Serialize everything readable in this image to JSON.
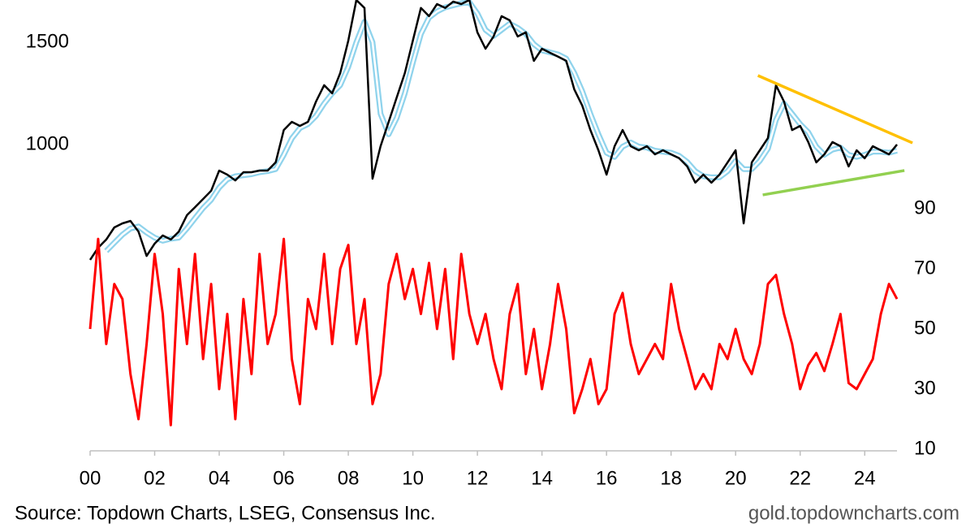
{
  "chart_data": {
    "type": "line",
    "x": [
      2000,
      2000.25,
      2000.5,
      2000.75,
      2001,
      2001.25,
      2001.5,
      2001.75,
      2002,
      2002.25,
      2002.5,
      2002.75,
      2003,
      2003.25,
      2003.5,
      2003.75,
      2004,
      2004.25,
      2004.5,
      2004.75,
      2005,
      2005.25,
      2005.5,
      2005.75,
      2006,
      2006.25,
      2006.5,
      2006.75,
      2007,
      2007.25,
      2007.5,
      2007.75,
      2008,
      2008.25,
      2008.5,
      2008.75,
      2009,
      2009.25,
      2009.5,
      2009.75,
      2010,
      2010.25,
      2010.5,
      2010.75,
      2011,
      2011.25,
      2011.5,
      2011.75,
      2012,
      2012.25,
      2012.5,
      2012.75,
      2013,
      2013.25,
      2013.5,
      2013.75,
      2014,
      2014.25,
      2014.5,
      2014.75,
      2015,
      2015.25,
      2015.5,
      2015.75,
      2016,
      2016.25,
      2016.5,
      2016.75,
      2017,
      2017.25,
      2017.5,
      2017.75,
      2018,
      2018.25,
      2018.5,
      2018.75,
      2019,
      2019.25,
      2019.5,
      2019.75,
      2020,
      2020.25,
      2020.5,
      2020.75,
      2021,
      2021.25,
      2021.5,
      2021.75,
      2022,
      2022.25,
      2022.5,
      2022.75,
      2023,
      2023.25,
      2023.5,
      2023.75,
      2024,
      2024.25,
      2024.5,
      2024.75,
      2025
    ],
    "series": [
      {
        "color": "#8fd3ec",
        "values": [
          null,
          null,
          480,
          520,
          560,
          590,
          600,
          570,
          545,
          530,
          540,
          545,
          590,
          640,
          690,
          730,
          790,
          830,
          845,
          850,
          855,
          865,
          870,
          880,
          950,
          1030,
          1080,
          1100,
          1140,
          1200,
          1250,
          1290,
          1380,
          1500,
          1600,
          1500,
          1150,
          1050,
          1130,
          1250,
          1400,
          1540,
          1620,
          1650,
          1670,
          1680,
          1690,
          1695,
          1640,
          1560,
          1530,
          1560,
          1590,
          1570,
          1540,
          1490,
          1460,
          1450,
          1440,
          1420,
          1350,
          1260,
          1150,
          1050,
          960,
          940,
          990,
          1010,
          990,
          985,
          970,
          965,
          960,
          945,
          915,
          870,
          845,
          840,
          840,
          870,
          920,
          880,
          880,
          920,
          980,
          1120,
          1200,
          1150,
          1100,
          1060,
          990,
          950,
          975,
          985,
          950,
          940,
          950,
          965,
          965,
          960,
          970
        ]
      },
      {
        "color": "#000000",
        "values": [
          437,
          496,
          536,
          595,
          615,
          627,
          575,
          456,
          516,
          556,
          536,
          575,
          655,
          694,
          734,
          774,
          873,
          853,
          825,
          865,
          865,
          873,
          873,
          913,
          1071,
          1111,
          1091,
          1111,
          1210,
          1290,
          1250,
          1349,
          1508,
          1706,
          1667,
          833,
          992,
          1111,
          1230,
          1349,
          1508,
          1667,
          1627,
          1686,
          1667,
          1698,
          1686,
          1706,
          1548,
          1468,
          1528,
          1627,
          1607,
          1528,
          1548,
          1409,
          1468,
          1448,
          1429,
          1409,
          1270,
          1190,
          1071,
          972,
          853,
          992,
          1071,
          992,
          972,
          992,
          952,
          972,
          952,
          933,
          893,
          814,
          853,
          814,
          853,
          913,
          972,
          615,
          913,
          972,
          1032,
          1290,
          1210,
          1071,
          1091,
          1012,
          913,
          952,
          1012,
          992,
          893,
          972,
          933,
          992,
          972,
          952,
          1000
        ]
      },
      {
        "color": "#ff0000",
        "axis": "y2",
        "values": [
          50,
          80,
          45,
          65,
          60,
          35,
          20,
          45,
          75,
          55,
          18,
          70,
          45,
          75,
          40,
          65,
          30,
          55,
          20,
          60,
          35,
          75,
          45,
          55,
          80,
          40,
          25,
          60,
          50,
          75,
          45,
          70,
          78,
          45,
          60,
          25,
          35,
          65,
          75,
          60,
          70,
          55,
          72,
          50,
          70,
          40,
          75,
          55,
          45,
          55,
          40,
          30,
          55,
          65,
          35,
          50,
          30,
          45,
          65,
          50,
          22,
          30,
          40,
          25,
          30,
          55,
          62,
          45,
          35,
          40,
          45,
          40,
          65,
          50,
          40,
          30,
          35,
          30,
          45,
          40,
          50,
          40,
          35,
          45,
          65,
          68,
          55,
          45,
          30,
          38,
          42,
          36,
          45,
          55,
          32,
          30,
          35,
          40,
          55,
          65,
          60
        ]
      }
    ],
    "trendlines": [
      {
        "color": "#ffc000",
        "x": [
          2020.69,
          2025.48
        ],
        "y": [
          1337,
          1008
        ]
      },
      {
        "color": "#92d050",
        "x": [
          2020.84,
          2025.23
        ],
        "y": [
          754,
          873
        ]
      }
    ],
    "xlim": [
      2000,
      2025
    ],
    "xticks": [
      {
        "value": 2000,
        "label": "00"
      },
      {
        "value": 2002,
        "label": "02"
      },
      {
        "value": 2004,
        "label": "04"
      },
      {
        "value": 2006,
        "label": "06"
      },
      {
        "value": 2008,
        "label": "08"
      },
      {
        "value": 2010,
        "label": "10"
      },
      {
        "value": 2012,
        "label": "12"
      },
      {
        "value": 2014,
        "label": "14"
      },
      {
        "value": 2016,
        "label": "16"
      },
      {
        "value": 2018,
        "label": "18"
      },
      {
        "value": 2020,
        "label": "20"
      },
      {
        "value": 2022,
        "label": "22"
      },
      {
        "value": 2024,
        "label": "24"
      }
    ],
    "ylim": [
      -488,
      1706
    ],
    "yticks": [
      1000,
      1500
    ],
    "y2lim": [
      10,
      159.5
    ],
    "y2ticks": [
      10,
      30,
      50,
      70,
      90
    ],
    "source": "Source: Topdown Charts, LSEG, Consensus Inc.",
    "website": "gold.topdowncharts.com"
  }
}
